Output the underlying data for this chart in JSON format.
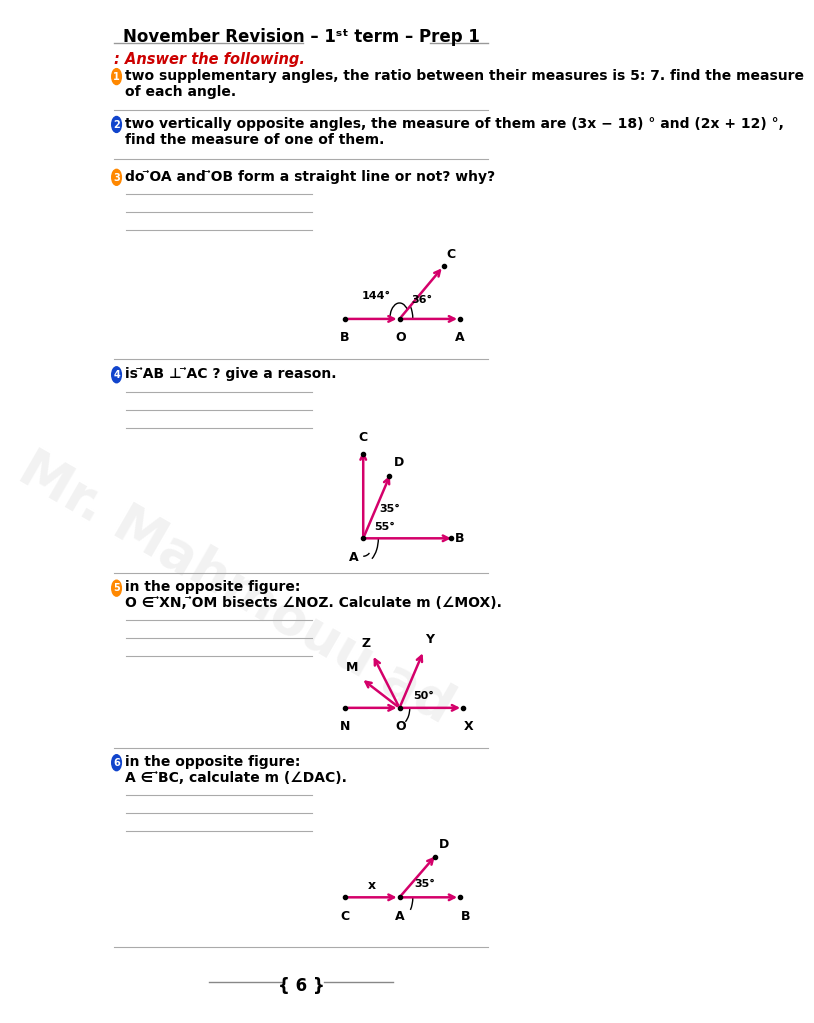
{
  "title": "November Revision – 1ˢᵗ term – Prep 1",
  "bg_color": "#ffffff",
  "magenta": "#d4006a",
  "black": "#000000",
  "red": "#cc0000",
  "orange": "#ff8800",
  "blue": "#1144cc",
  "gray_line": "#aaaaaa",
  "page_num": "6",
  "q1_text1": "two supplementary angles, the ratio between their measures is 5: 7. find the measure",
  "q1_text2": "of each angle.",
  "q2_text1": "two vertically opposite angles, the measure of them are (3x − 18) ° and (2x + 12) °,",
  "q2_text2": "find the measure of one of them.",
  "q3_text": "do ⃗OA and ⃗OB form a straight line or not? why?",
  "q4_text": "is ⃗AB ⊥ ⃗AC ? give a reason.",
  "q5_text1": "in the opposite figure:",
  "q5_text2": "O ∈ ⃗XN, ⃗OM bisects ∠NOZ. Calculate m (∠MOX).",
  "q6_text1": "in the opposite figure:",
  "q6_text2": "A ∈ ⃗BC, calculate m (∠DAC)."
}
